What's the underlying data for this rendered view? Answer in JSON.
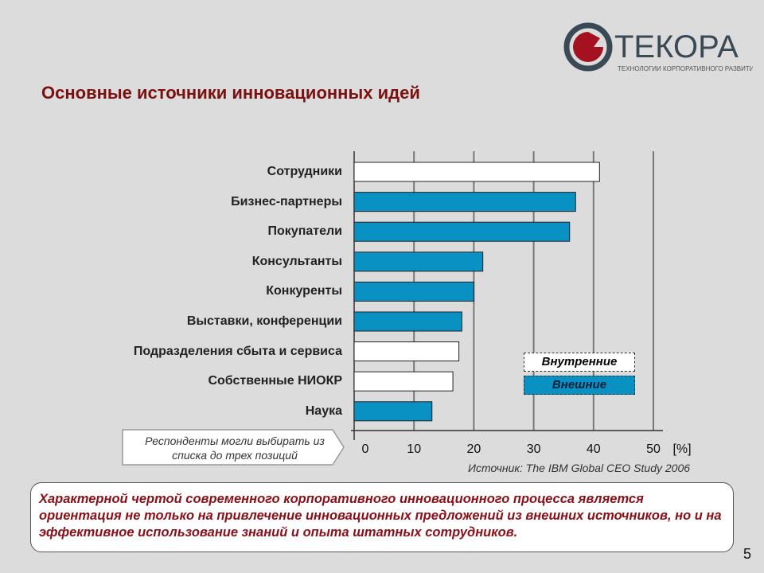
{
  "title": "Основные источники инновационных идей",
  "logo": {
    "name": "ТЕКОРА",
    "tagline": "ТЕХНОЛОГИИ КОРПОРАТИВНОГО РАЗВИТИЯ",
    "colors": {
      "ring": "#3a4a55",
      "accent": "#a3121e"
    }
  },
  "chart_data": {
    "type": "bar",
    "orientation": "horizontal",
    "categories": [
      "Сотрудники",
      "Бизнес-партнеры",
      "Покупатели",
      "Консультанты",
      "Конкуренты",
      "Выставки, конференции",
      "Подразделения сбыта и сервиса",
      "Собственные НИОКР",
      "Наука"
    ],
    "values": [
      41,
      37,
      36,
      21.5,
      20,
      18,
      17.5,
      16.5,
      13
    ],
    "groups": [
      "internal",
      "external",
      "external",
      "external",
      "external",
      "external",
      "internal",
      "internal",
      "external"
    ],
    "xlim": [
      0,
      50
    ],
    "xticks": [
      0,
      10,
      20,
      30,
      40,
      50
    ],
    "xunit": "[%]",
    "grid": true,
    "legend": [
      {
        "key": "internal",
        "label": "Внутренние",
        "color": "#ffffff"
      },
      {
        "key": "external",
        "label": "Внешние",
        "color": "#0a91c4"
      }
    ],
    "legend_placement": "bottom-right"
  },
  "note": "Респонденты могли выбирать из списка до трех позиций",
  "source": "Источник: The IBM Global CEO Study 2006",
  "summary": "Характерной чертой современного корпоративного инновационного процесса является ориентация не только на привлечение инновационных предложений из внешних источников, но и на эффективное использование знаний и опыта штатных сотрудников.",
  "page_number": "5"
}
